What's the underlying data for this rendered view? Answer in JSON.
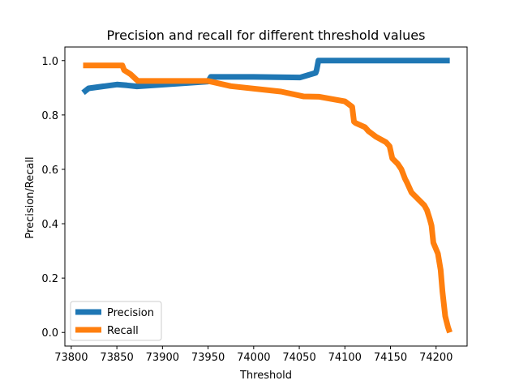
{
  "chart_data": {
    "type": "line",
    "title": "Precision and recall for different threshold values",
    "xlabel": "Threshold",
    "ylabel": "Precision/Recall",
    "xlim": [
      73793,
      74234
    ],
    "ylim": [
      -0.05,
      1.05
    ],
    "xticks": [
      73800,
      73850,
      73900,
      73950,
      74000,
      74050,
      74100,
      74150,
      74200
    ],
    "yticks": [
      0.0,
      0.2,
      0.4,
      0.6,
      0.8,
      1.0
    ],
    "ytick_labels": [
      "0.0",
      "0.2",
      "0.4",
      "0.6",
      "0.8",
      "1.0"
    ],
    "grid": false,
    "legend_position": "lower-left",
    "series": [
      {
        "name": "Precision",
        "color": "#1f77b4",
        "x": [
          73813,
          73819,
          73850,
          73861,
          73872,
          73950,
          73953,
          74000,
          74051,
          74068,
          74069,
          74071,
          74100,
          74150,
          74215
        ],
        "y": [
          0.882,
          0.898,
          0.912,
          0.909,
          0.905,
          0.923,
          0.94,
          0.94,
          0.938,
          0.955,
          0.965,
          1.0,
          1.0,
          1.0,
          1.0
        ]
      },
      {
        "name": "Recall",
        "color": "#ff7f0e",
        "x": [
          73813,
          73856,
          73858,
          73865,
          73873,
          73900,
          73950,
          73975,
          74030,
          74055,
          74072,
          74100,
          74108,
          74110,
          74112,
          74122,
          74126,
          74134,
          74145,
          74149,
          74152,
          74158,
          74162,
          74166,
          74168,
          74173,
          74187,
          74190,
          74193,
          74195,
          74197,
          74202,
          74205,
          74207,
          74210,
          74213,
          74215
        ],
        "y": [
          0.982,
          0.982,
          0.965,
          0.95,
          0.925,
          0.925,
          0.925,
          0.906,
          0.886,
          0.868,
          0.867,
          0.85,
          0.83,
          0.775,
          0.77,
          0.755,
          0.74,
          0.72,
          0.7,
          0.685,
          0.64,
          0.62,
          0.6,
          0.565,
          0.552,
          0.515,
          0.468,
          0.45,
          0.418,
          0.393,
          0.33,
          0.29,
          0.23,
          0.15,
          0.06,
          0.02,
          0.0
        ]
      }
    ]
  }
}
